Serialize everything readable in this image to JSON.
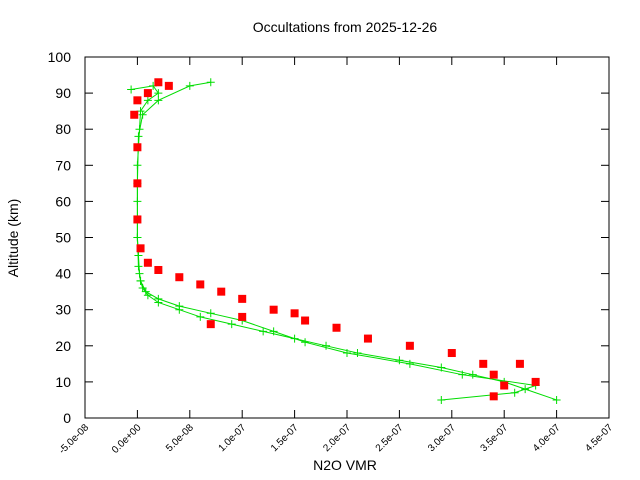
{
  "chart_data": {
    "type": "line",
    "title": "Occultations from 2025-12-26",
    "x_label": "N2O VMR",
    "y_label": "Altitude (km)",
    "xlim": [
      -5e-08,
      4.5e-07
    ],
    "ylim": [
      0,
      100
    ],
    "xticks": [
      {
        "value": -5e-08,
        "label": "-5.0e-08"
      },
      {
        "value": 0,
        "label": "0.0e+00"
      },
      {
        "value": 5e-08,
        "label": "5.0e-08"
      },
      {
        "value": 1e-07,
        "label": "1.0e-07"
      },
      {
        "value": 1.5e-07,
        "label": "1.5e-07"
      },
      {
        "value": 2e-07,
        "label": "2.0e-07"
      },
      {
        "value": 2.5e-07,
        "label": "2.5e-07"
      },
      {
        "value": 3e-07,
        "label": "3.0e-07"
      },
      {
        "value": 3.5e-07,
        "label": "3.5e-07"
      },
      {
        "value": 4e-07,
        "label": "4.0e-07"
      },
      {
        "value": 4.5e-07,
        "label": "4.5e-07"
      }
    ],
    "yticks": [
      0,
      10,
      20,
      30,
      40,
      50,
      60,
      70,
      80,
      90,
      100
    ],
    "grid": false,
    "series": [
      {
        "color": "#00dd00",
        "marker": "plus",
        "line": true,
        "x": [
          4e-07,
          3.7e-07,
          3.5e-07,
          3.2e-07,
          2.9e-07,
          2.5e-07,
          2.1e-07,
          1.8e-07,
          1.5e-07,
          1.2e-07,
          9e-08,
          6e-08,
          4e-08,
          2e-08,
          1e-08,
          5e-09,
          3e-09,
          2e-09,
          1e-09,
          0,
          0,
          0,
          2e-09,
          3e-09,
          1e-08,
          2e-08,
          1.5e-08,
          -6e-09
        ],
        "values": [
          5,
          8,
          10,
          12,
          14,
          16,
          18,
          20,
          22,
          24,
          26,
          28,
          30,
          32,
          34,
          36,
          38,
          40,
          45,
          50,
          60,
          70,
          80,
          85,
          88,
          90,
          92,
          91
        ]
      },
      {
        "color": "#00dd00",
        "marker": "plus",
        "line": true,
        "x": [
          2.9e-07,
          3.6e-07,
          3.8e-07,
          3.1e-07,
          2.6e-07,
          2e-07,
          1.6e-07,
          1.3e-07,
          1e-07,
          7e-08,
          4e-08,
          2e-08,
          8e-09,
          3e-09,
          1e-09,
          0,
          0,
          1e-09,
          5e-09,
          2e-08,
          5e-08,
          7e-08
        ],
        "values": [
          5,
          7,
          9,
          12,
          15,
          18,
          21,
          24,
          27,
          29,
          31,
          33,
          35,
          38,
          42,
          50,
          65,
          78,
          84,
          88,
          92,
          93
        ]
      },
      {
        "color": "#ff0000",
        "marker": "square",
        "line": false,
        "x": [
          3.4e-07,
          3.5e-07,
          3.4e-07,
          3.3e-07,
          3e-07,
          2.6e-07,
          2.2e-07,
          1.9e-07,
          1.6e-07,
          1.3e-07,
          1e-07,
          8e-08,
          6e-08,
          4e-08,
          2e-08,
          1e-08,
          3e-09,
          0,
          0,
          0,
          -3e-09,
          0,
          1e-08,
          3e-08,
          2e-08,
          7e-08,
          1e-07,
          3.8e-07,
          3.65e-07,
          1.5e-07
        ],
        "values": [
          6,
          9,
          12,
          15,
          18,
          20,
          22,
          25,
          27,
          30,
          33,
          35,
          37,
          39,
          41,
          43,
          47,
          55,
          65,
          75,
          84,
          88,
          90,
          92,
          93,
          26,
          28,
          10,
          15,
          29
        ]
      }
    ]
  }
}
